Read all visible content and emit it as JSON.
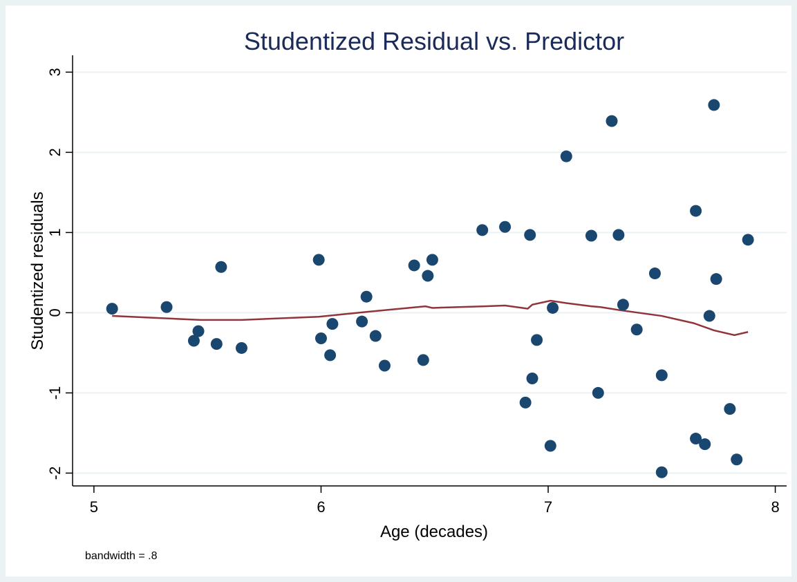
{
  "chart_data": {
    "type": "scatter",
    "title": "Studentized Residual vs. Predictor",
    "x_label": "Age (decades)",
    "y_label": "Studentized residuals",
    "note": "bandwidth = .8",
    "xlim": [
      4.906,
      8.05
    ],
    "ylim": [
      -2.16,
      3.21
    ],
    "xticks": [
      5,
      6,
      7,
      8
    ],
    "yticks": [
      -2,
      -1,
      0,
      1,
      2,
      3
    ],
    "grid": true,
    "color": "#1a476f",
    "x": [
      5.08,
      5.32,
      5.44,
      5.46,
      5.54,
      5.56,
      5.65,
      5.99,
      6.0,
      6.05,
      6.04,
      6.18,
      6.2,
      6.24,
      6.28,
      6.41,
      6.45,
      6.47,
      6.49,
      6.71,
      6.81,
      6.9,
      6.92,
      6.93,
      6.95,
      7.01,
      7.02,
      7.08,
      7.19,
      7.22,
      7.28,
      7.31,
      7.33,
      7.39,
      7.47,
      7.5,
      7.5,
      7.65,
      7.65,
      7.69,
      7.71,
      7.73,
      7.74,
      7.8,
      7.83,
      7.88
    ],
    "values": [
      0.05,
      0.07,
      -0.35,
      -0.23,
      -0.39,
      0.57,
      -0.44,
      0.66,
      -0.32,
      -0.14,
      -0.53,
      -0.11,
      0.2,
      -0.29,
      -0.66,
      0.59,
      -0.59,
      0.46,
      0.66,
      1.03,
      1.07,
      -1.12,
      0.97,
      -0.82,
      -0.34,
      -1.66,
      0.06,
      1.95,
      0.96,
      -1.0,
      2.39,
      0.97,
      0.1,
      -0.21,
      0.49,
      -0.78,
      -1.99,
      1.27,
      -1.57,
      -1.64,
      -0.04,
      2.59,
      0.42,
      -1.2,
      -1.83,
      0.91
    ],
    "fit": {
      "color": "#90353b",
      "x": [
        5.08,
        5.47,
        5.65,
        5.99,
        6.2,
        6.46,
        6.49,
        6.72,
        6.81,
        6.91,
        6.93,
        7.01,
        7.08,
        7.19,
        7.23,
        7.32,
        7.5,
        7.64,
        7.73,
        7.82,
        7.88
      ],
      "values": [
        -0.04,
        -0.09,
        -0.09,
        -0.05,
        0.01,
        0.08,
        0.06,
        0.08,
        0.09,
        0.05,
        0.1,
        0.15,
        0.12,
        0.08,
        0.07,
        0.03,
        -0.04,
        -0.13,
        -0.22,
        -0.28,
        -0.24
      ]
    }
  }
}
